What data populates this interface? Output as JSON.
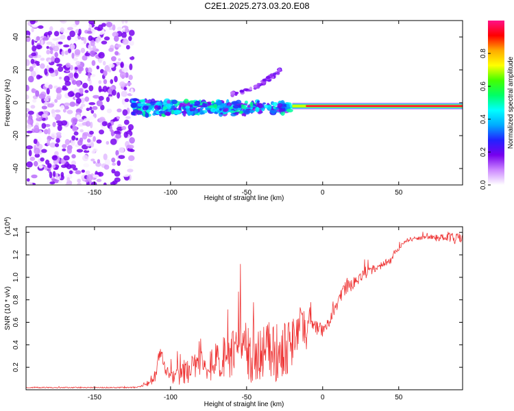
{
  "title": "C2E1.2025.273.03.20.E08",
  "colors": {
    "series": "#ee3333",
    "background": "#ffffff",
    "axis": "#000000"
  },
  "chart_data": [
    {
      "type": "heatmap",
      "xlabel": "Height of straight line (km)",
      "ylabel": "Frequency (Hz)",
      "xlim": [
        -195,
        92
      ],
      "ylim": [
        -50,
        50
      ],
      "x_ticks": [
        "-150",
        "-100",
        "-50",
        "0",
        "50"
      ],
      "y_ticks": [
        "-40",
        "-20",
        "0",
        "20",
        "40"
      ],
      "colorbar": {
        "label": "Normalized spectral amplitude",
        "range": [
          0,
          1
        ],
        "ticks": [
          "0.0",
          "0.2",
          "0.4",
          "0.6",
          "0.8"
        ],
        "stops": [
          "#ffffff",
          "#cc88ff",
          "#7700ee",
          "#2222ff",
          "#00aaff",
          "#00ffff",
          "#00ff66",
          "#44ff00",
          "#ffff00",
          "#ffaa00",
          "#ff0000",
          "#ff1188"
        ]
      },
      "regions": [
        {
          "name": "broadband noise",
          "x_range": [
            -195,
            -125
          ],
          "freq_range": [
            -50,
            50
          ],
          "amplitude": 0.15
        },
        {
          "name": "noisy tone",
          "x_range": [
            -125,
            -20
          ],
          "freq_center": -3,
          "amplitude": 0.45
        },
        {
          "name": "chirp branch",
          "x": [
            -60,
            -45,
            -35,
            -30,
            -28
          ],
          "freq": [
            5,
            9,
            15,
            18,
            20
          ],
          "amplitude": 0.15
        },
        {
          "name": "clean tone",
          "x_range": [
            -20,
            92
          ],
          "freq_center": -2,
          "amplitude": 0.95
        }
      ]
    },
    {
      "type": "line",
      "xlabel": "Height of straight line (km)",
      "ylabel": "SNR (10 * v/v)",
      "multiplier": "(x10^4)",
      "xlim": [
        -195,
        92
      ],
      "ylim": [
        0,
        1.45
      ],
      "x_ticks": [
        "-150",
        "-100",
        "-50",
        "0",
        "50"
      ],
      "y_ticks": [
        "0.2",
        "0.4",
        "0.6",
        "0.8",
        "1.0",
        "1.2",
        "1.4"
      ],
      "series": [
        {
          "name": "SNR",
          "x": [
            -195,
            -130,
            -125,
            -120,
            -118,
            -115,
            -110,
            -108,
            -106,
            -104,
            -100,
            -95,
            -90,
            -85,
            -80,
            -75,
            -70,
            -65,
            -60,
            -55,
            -50,
            -45,
            -40,
            -35,
            -30,
            -25,
            -20,
            -17,
            -15,
            -12,
            -10,
            -8,
            -5,
            0,
            3,
            5,
            8,
            10,
            15,
            20,
            25,
            30,
            35,
            38,
            40,
            45,
            47,
            50,
            55,
            60,
            65,
            70,
            75,
            80,
            85,
            88,
            90,
            92
          ],
          "values": [
            0.02,
            0.02,
            0.02,
            0.03,
            0.04,
            0.06,
            0.1,
            0.3,
            0.36,
            0.2,
            0.1,
            0.12,
            0.15,
            0.2,
            0.26,
            0.22,
            0.25,
            0.28,
            0.3,
            0.33,
            0.35,
            0.3,
            0.32,
            0.36,
            0.34,
            0.38,
            0.4,
            0.5,
            0.6,
            0.55,
            0.45,
            0.7,
            0.56,
            0.52,
            0.6,
            0.68,
            0.72,
            0.8,
            0.9,
            0.95,
            1.0,
            1.05,
            1.08,
            1.1,
            1.12,
            1.15,
            1.22,
            1.25,
            1.33,
            1.34,
            1.35,
            1.36,
            1.35,
            1.36,
            1.37,
            1.36,
            1.33,
            1.32
          ],
          "noise": [
            0.005,
            0.005,
            0.005,
            0.01,
            0.02,
            0.03,
            0.04,
            0.06,
            0.06,
            0.05,
            0.06,
            0.08,
            0.1,
            0.12,
            0.14,
            0.15,
            0.17,
            0.19,
            0.22,
            0.26,
            0.28,
            0.25,
            0.24,
            0.26,
            0.28,
            0.26,
            0.22,
            0.2,
            0.18,
            0.15,
            0.14,
            0.12,
            0.08,
            0.06,
            0.08,
            0.1,
            0.1,
            0.07,
            0.06,
            0.06,
            0.05,
            0.04,
            0.04,
            0.03,
            0.03,
            0.03,
            0.02,
            0.02,
            0.02,
            0.02,
            0.02,
            0.02,
            0.03,
            0.03,
            0.06,
            0.08,
            0.06,
            0.05
          ]
        }
      ]
    }
  ]
}
